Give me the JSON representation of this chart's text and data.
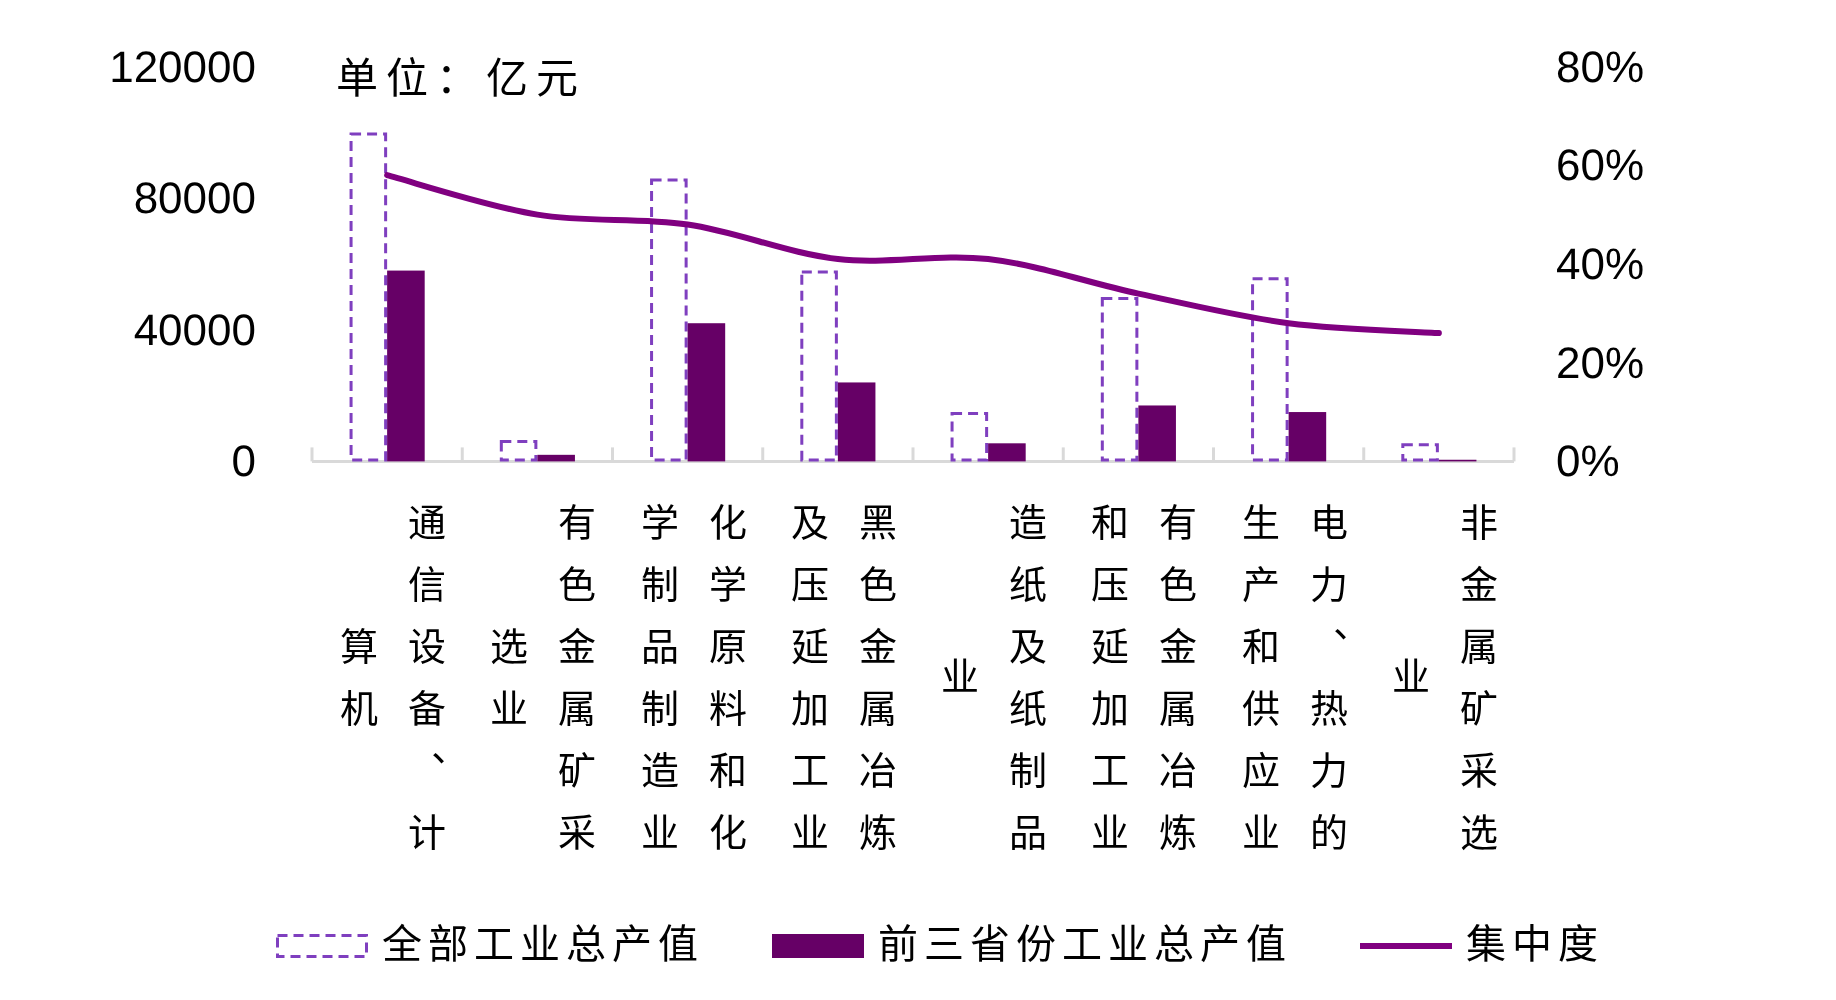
{
  "chart_data": {
    "type": "bar",
    "categories": [
      "通信设备、计算机",
      "有色金属矿采选业",
      "化学原料和化学制品制造业",
      "黑色金属冶炼及压延加工业",
      "造纸及纸制品业",
      "有色金属冶炼和压延加工业",
      "电力、热力的生产和供应业",
      "非金属矿采选业"
    ],
    "series": [
      {
        "name": "全部工业总产值",
        "color": "#7f3fbf",
        "line_style": "dashed",
        "values": [
          100000,
          6500,
          86000,
          58000,
          15000,
          50000,
          56000,
          5500
        ]
      },
      {
        "name": "前三省份工业总产值",
        "color": "#660066",
        "values": [
          58000,
          2000,
          42000,
          24000,
          5500,
          17000,
          15000,
          500
        ]
      },
      {
        "name": "集中度",
        "type": "line",
        "axis": "y2",
        "color": "#800080",
        "values": [
          58,
          50,
          48,
          41,
          41,
          34,
          28,
          26
        ]
      }
    ],
    "ylim": [
      0,
      120000
    ],
    "yticks": [
      0,
      40000,
      80000,
      120000
    ],
    "y2lim": [
      0,
      80
    ],
    "y2ticks": [
      {
        "value": 0,
        "label": "0%"
      },
      {
        "value": 20,
        "label": "20%"
      },
      {
        "value": 40,
        "label": "40%"
      },
      {
        "value": 60,
        "label": "60%"
      },
      {
        "value": 80,
        "label": "80%"
      }
    ],
    "annotations": [
      "单位：亿元"
    ],
    "legend": "bottom"
  }
}
